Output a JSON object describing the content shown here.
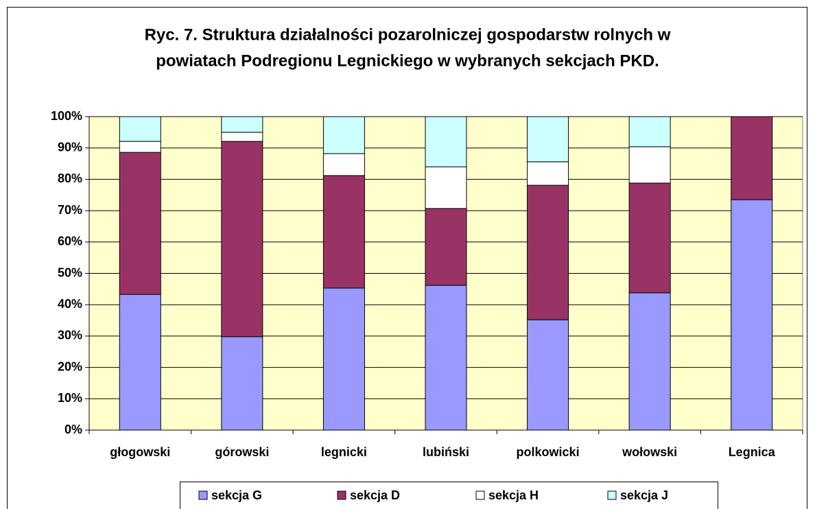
{
  "chart_data": {
    "type": "stacked_bar",
    "title": [
      "Ryc. 7. Struktura działalności pozarolniczej gospodarstw rolnych w",
      "powiatach Podregionu Legnickiego w wybranych sekcjach PKD."
    ],
    "categories": [
      "głogowski",
      "górowski",
      "legnicki",
      "lubiński",
      "polkowicki",
      "wołowski",
      "Legnica"
    ],
    "series": [
      {
        "name": "sekcja G",
        "color": "#9999ff",
        "values": [
          43.3,
          29.8,
          45.3,
          46.2,
          35.2,
          43.8,
          73.5
        ]
      },
      {
        "name": "sekcja D",
        "color": "#993366",
        "values": [
          45.3,
          62.3,
          35.9,
          24.5,
          42.9,
          35.0,
          26.5
        ]
      },
      {
        "name": "sekcja H",
        "color": "#ffffff",
        "values": [
          3.5,
          2.9,
          7.0,
          13.3,
          7.5,
          11.6,
          0
        ]
      },
      {
        "name": "sekcja J",
        "color": "#ccffff",
        "values": [
          7.9,
          5.0,
          11.8,
          16.0,
          14.4,
          9.6,
          0
        ]
      }
    ],
    "ylim": [
      0,
      100
    ],
    "yticks": [
      {
        "value": 0,
        "label": "0%"
      },
      {
        "value": 10,
        "label": "10%"
      },
      {
        "value": 20,
        "label": "20%"
      },
      {
        "value": 30,
        "label": "30%"
      },
      {
        "value": 40,
        "label": "40%"
      },
      {
        "value": 50,
        "label": "50%"
      },
      {
        "value": 60,
        "label": "60%"
      },
      {
        "value": 70,
        "label": "70%"
      },
      {
        "value": 80,
        "label": "80%"
      },
      {
        "value": 90,
        "label": "90%"
      },
      {
        "value": 100,
        "label": "100%"
      }
    ],
    "grid": true,
    "plot_background": "#ffffcc",
    "legend": "bottom"
  }
}
